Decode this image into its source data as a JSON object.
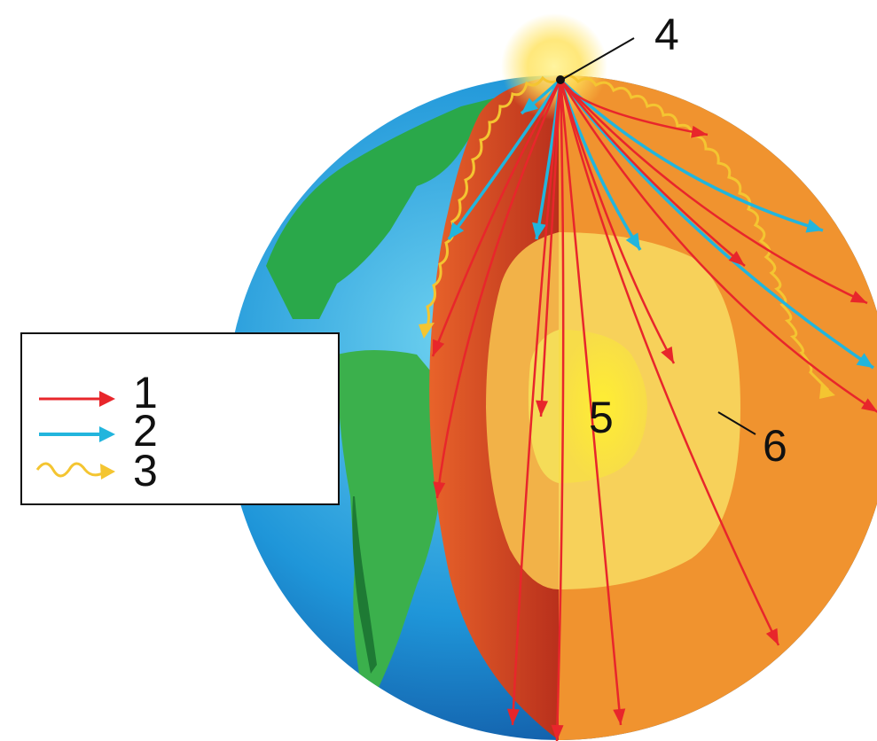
{
  "colors": {
    "p_wave": "#e8262b",
    "s_wave": "#22b5dd",
    "surface_wave": "#f4c531",
    "crust_orange": "#f0932f",
    "cut_red": "#cf3b22",
    "outer_core": "#f6c14a",
    "inner_core": "#fbe44a",
    "ocean": "#1f96d9",
    "land": "#2aa84a"
  },
  "legend": {
    "items": [
      {
        "label": "1",
        "wave": "p_wave",
        "icon": "straight-arrow-icon"
      },
      {
        "label": "2",
        "wave": "s_wave",
        "icon": "straight-arrow-icon"
      },
      {
        "label": "3",
        "wave": "surface_wave",
        "icon": "wavy-arrow-icon"
      }
    ]
  },
  "labels": {
    "epicenter": "4",
    "inner_core": "5",
    "outer_core": "6"
  }
}
